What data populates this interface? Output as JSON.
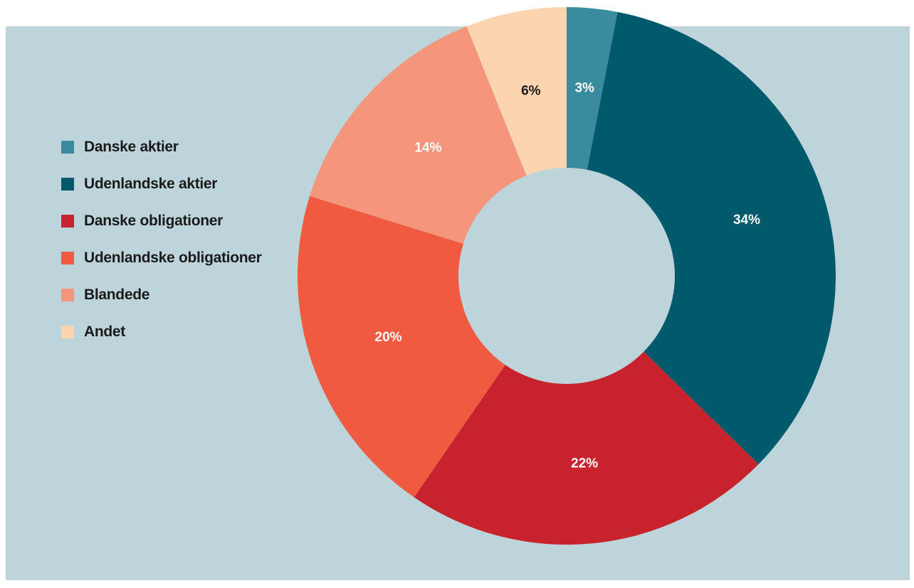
{
  "colors": {
    "background_panel": "#bcd4da",
    "label_light": "#ffffff",
    "label_dark": "#1a1a1a"
  },
  "chart_data": {
    "type": "pie",
    "variant": "donut",
    "title": "",
    "legend_position": "left",
    "slices": [
      {
        "label": "Danske aktier",
        "value": 3,
        "value_label": "3%",
        "color": "#3a8c9c",
        "label_color": "#ffffff"
      },
      {
        "label": "Udenlandske aktier",
        "value": 34,
        "value_label": "34%",
        "color": "#005a6b",
        "label_color": "#ffffff"
      },
      {
        "label": "Danske obligationer",
        "value": 22,
        "value_label": "22%",
        "color": "#c8232c",
        "label_color": "#ffffff"
      },
      {
        "label": "Udenlandske obligationer",
        "value": 20,
        "value_label": "20%",
        "color": "#ef5a40",
        "label_color": "#ffffff"
      },
      {
        "label": "Blandede",
        "value": 14,
        "value_label": "14%",
        "color": "#f4967b",
        "label_color": "#ffffff"
      },
      {
        "label": "Andet",
        "value": 6,
        "value_label": "6%",
        "color": "#fdd4b0",
        "label_color": "#1a1a1a"
      }
    ]
  }
}
